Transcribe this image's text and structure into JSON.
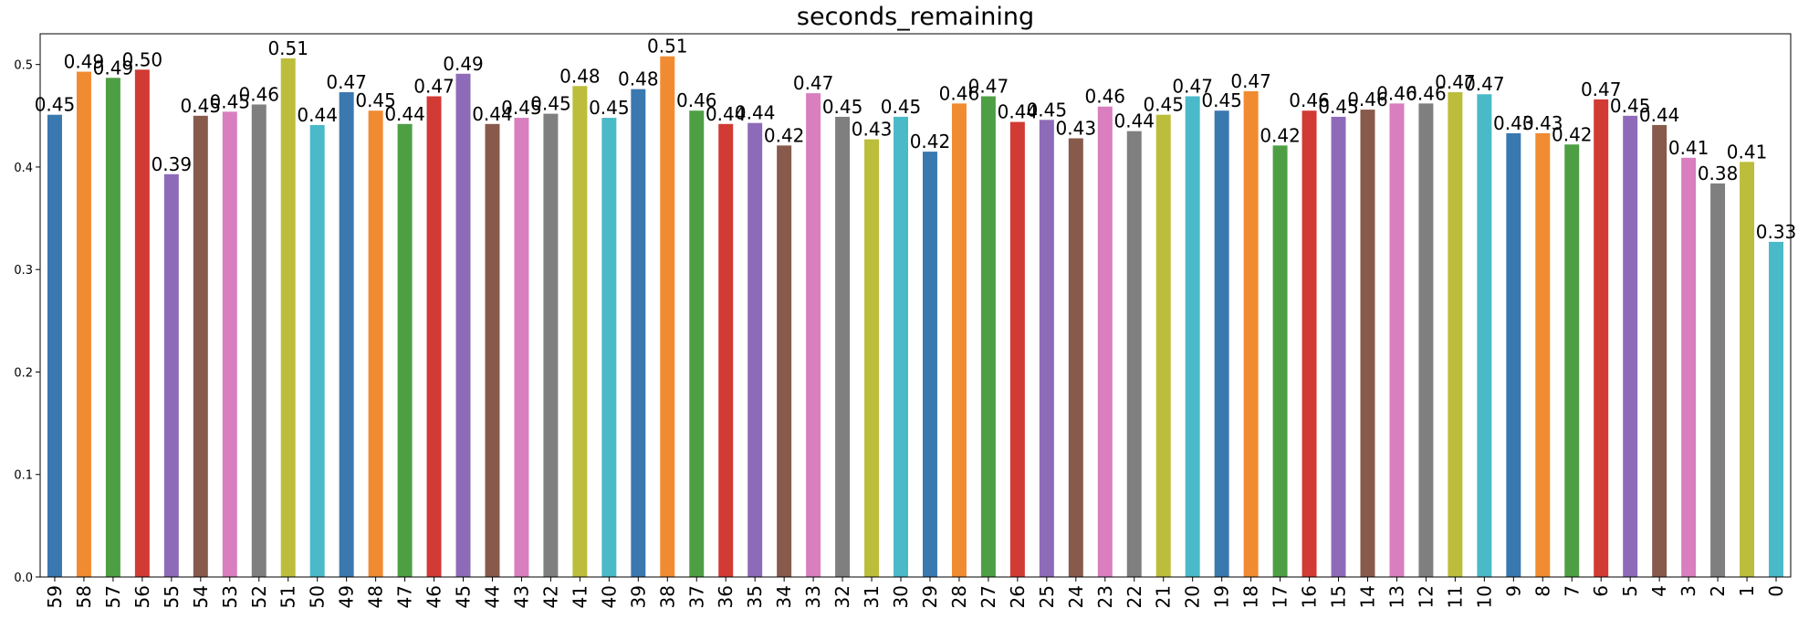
{
  "chart_data": {
    "type": "bar",
    "title": "seconds_remaining",
    "xlabel": "",
    "ylabel": "",
    "ylim": [
      0,
      0.53
    ],
    "yticks": [
      "0.0",
      "0.1",
      "0.2",
      "0.3",
      "0.4",
      "0.5"
    ],
    "grid": false,
    "categories": [
      "59",
      "58",
      "57",
      "56",
      "55",
      "54",
      "53",
      "52",
      "51",
      "50",
      "49",
      "48",
      "47",
      "46",
      "45",
      "44",
      "43",
      "42",
      "41",
      "40",
      "39",
      "38",
      "37",
      "36",
      "35",
      "34",
      "33",
      "32",
      "31",
      "30",
      "29",
      "28",
      "27",
      "26",
      "25",
      "24",
      "23",
      "22",
      "21",
      "20",
      "19",
      "18",
      "17",
      "16",
      "15",
      "14",
      "13",
      "12",
      "11",
      "10",
      "9",
      "8",
      "7",
      "6",
      "5",
      "4",
      "3",
      "2",
      "1",
      "0"
    ],
    "values": [
      0.451,
      0.493,
      0.487,
      0.495,
      0.393,
      0.45,
      0.454,
      0.461,
      0.506,
      0.441,
      0.473,
      0.455,
      0.442,
      0.469,
      0.491,
      0.442,
      0.448,
      0.452,
      0.479,
      0.448,
      0.476,
      0.508,
      0.455,
      0.442,
      0.443,
      0.421,
      0.472,
      0.449,
      0.427,
      0.449,
      0.415,
      0.462,
      0.469,
      0.444,
      0.446,
      0.428,
      0.459,
      0.435,
      0.451,
      0.469,
      0.455,
      0.474,
      0.421,
      0.455,
      0.449,
      0.456,
      0.462,
      0.462,
      0.473,
      0.471,
      0.433,
      0.433,
      0.422,
      0.466,
      0.45,
      0.441,
      0.409,
      0.384,
      0.405,
      0.327
    ],
    "data_labels": [
      "0.45",
      "0.49",
      "0.49",
      "0.50",
      "0.39",
      "0.45",
      "0.45",
      "0.46",
      "0.51",
      "0.44",
      "0.47",
      "0.45",
      "0.44",
      "0.47",
      "0.49",
      "0.44",
      "0.45",
      "0.45",
      "0.48",
      "0.45",
      "0.48",
      "0.51",
      "0.46",
      "0.44",
      "0.44",
      "0.42",
      "0.47",
      "0.45",
      "0.43",
      "0.45",
      "0.42",
      "0.46",
      "0.47",
      "0.44",
      "0.45",
      "0.43",
      "0.46",
      "0.44",
      "0.45",
      "0.47",
      "0.45",
      "0.47",
      "0.42",
      "0.46",
      "0.45",
      "0.46",
      "0.46",
      "0.46",
      "0.47",
      "0.47",
      "0.43",
      "0.43",
      "0.42",
      "0.47",
      "0.45",
      "0.44",
      "0.41",
      "0.38",
      "0.41",
      "0.33"
    ],
    "colors": [
      "#3a78b0",
      "#f18b31",
      "#4e9f44",
      "#d23a34",
      "#8e6bb8",
      "#875a4b",
      "#d97ebf",
      "#7f7f7f",
      "#bcbd3a",
      "#4ab9c8"
    ]
  }
}
